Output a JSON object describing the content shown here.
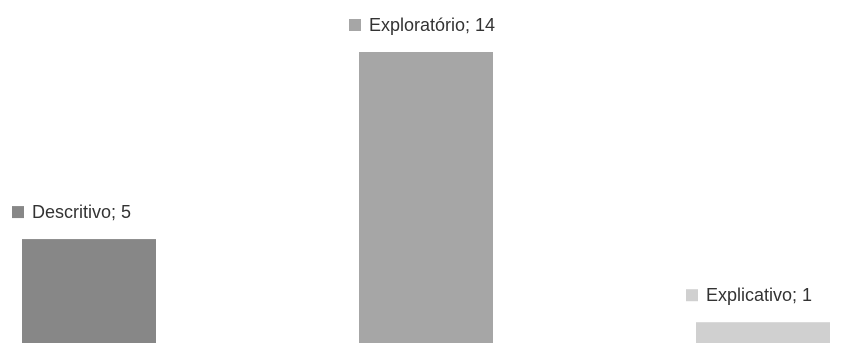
{
  "chart_data": {
    "type": "bar",
    "title": "",
    "xlabel": "",
    "ylabel": "",
    "ylim": [
      0,
      14
    ],
    "grid": false,
    "legend": "none",
    "categories": [
      "Descritivo",
      "Exploratório",
      "Explicativo"
    ],
    "values": [
      5,
      14,
      1
    ],
    "colors": [
      "#878787",
      "#a6a6a6",
      "#d0d0d0"
    ],
    "data_labels": [
      "Descritivo; 5",
      "Exploratório; 14",
      "Explicativo; 1"
    ]
  }
}
